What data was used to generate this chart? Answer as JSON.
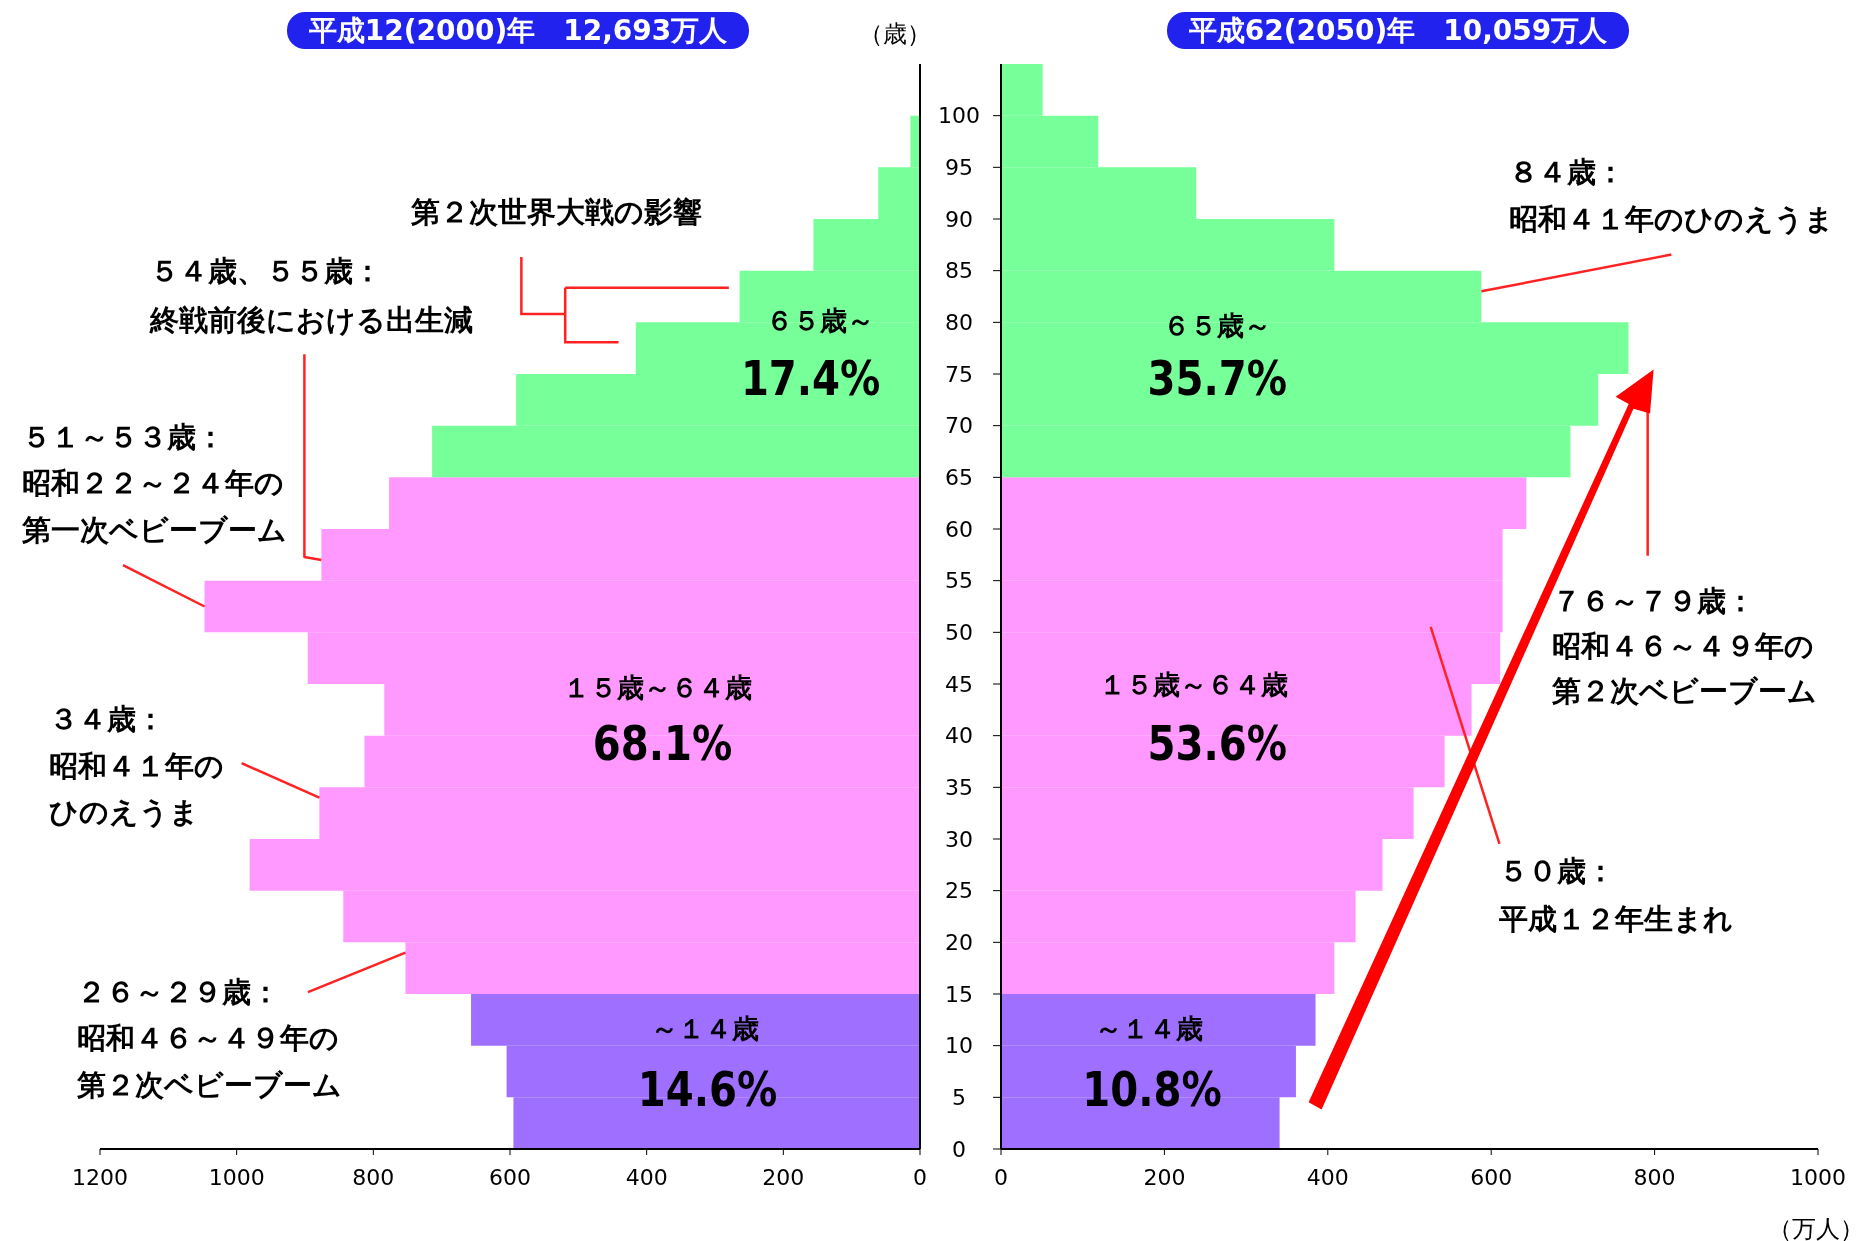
{
  "chart_data": [
    {
      "type": "histogram",
      "orientation": "horizontal",
      "title": "平成12(2000)年　12,693万人",
      "bins": [
        0,
        5,
        10,
        15,
        20,
        25,
        30,
        35,
        40,
        45,
        50,
        55,
        60,
        65,
        70,
        75,
        80,
        85,
        90,
        95,
        100
      ],
      "values": [
        595,
        605,
        657,
        753,
        844,
        981,
        879,
        813,
        784,
        896,
        1047,
        876,
        777,
        714,
        591,
        416,
        264,
        156,
        61,
        14
      ],
      "colors": [
        "#9f6fff",
        "#9f6fff",
        "#9f6fff",
        "#ff99ff",
        "#ff99ff",
        "#ff99ff",
        "#ff99ff",
        "#ff99ff",
        "#ff99ff",
        "#ff99ff",
        "#ff99ff",
        "#ff99ff",
        "#ff99ff",
        "#77ff99",
        "#77ff99",
        "#77ff99",
        "#77ff99",
        "#77ff99",
        "#77ff99",
        "#77ff99"
      ],
      "xlim": [
        1200,
        0
      ],
      "xticks": [
        1200,
        1000,
        800,
        600,
        400,
        200,
        0
      ],
      "ylim": [
        0,
        105
      ],
      "yticks": [
        0,
        5,
        10,
        15,
        20,
        25,
        30,
        35,
        40,
        45,
        50,
        55,
        60,
        65,
        70,
        75,
        80,
        85,
        90,
        95,
        100
      ],
      "tick_labels": "x",
      "annotations": [
        "第２次世界大戦の影響",
        {
          "text": "５４歳、５５歳：終戦前後における出生減",
          "x": 876,
          "y": 57
        },
        {
          "text": "５１～５３歳：昭和２２～２４年の第一次ベビーブーム",
          "x": 1047,
          "y": 52.5
        },
        {
          "text": "３４歳：昭和４１年のひのえうま",
          "x": 879,
          "y": 34
        },
        {
          "text": "２６～２９歳：昭和４６～４９年の第２次ベビーブーム",
          "x": 753,
          "y": 19
        },
        "６５歳～",
        "17.4%",
        "１５歳～６４歳",
        "68.1%",
        "～１４歳",
        "14.6%"
      ]
    },
    {
      "type": "histogram",
      "orientation": "horizontal",
      "title": "平成62(2050)年　10,059万人",
      "ylabel": "（歳）",
      "xlabel": "（万人）",
      "bins": [
        0,
        5,
        10,
        15,
        20,
        25,
        30,
        35,
        40,
        45,
        50,
        55,
        60,
        65,
        70,
        75,
        80,
        85,
        90,
        95,
        100,
        105
      ],
      "values": [
        341,
        361,
        385,
        408,
        434,
        467,
        505,
        543,
        576,
        611,
        614,
        614,
        643,
        697,
        731,
        768,
        588,
        408,
        239,
        119,
        51
      ],
      "colors": [
        "#9f6fff",
        "#9f6fff",
        "#9f6fff",
        "#ff99ff",
        "#ff99ff",
        "#ff99ff",
        "#ff99ff",
        "#ff99ff",
        "#ff99ff",
        "#ff99ff",
        "#ff99ff",
        "#ff99ff",
        "#ff99ff",
        "#77ff99",
        "#77ff99",
        "#77ff99",
        "#77ff99",
        "#77ff99",
        "#77ff99",
        "#77ff99",
        "#77ff99"
      ],
      "xlim": [
        0,
        1000
      ],
      "xticks": [
        0,
        200,
        400,
        600,
        800,
        1000
      ],
      "ylim": [
        0,
        105
      ],
      "yticks": [
        0,
        5,
        10,
        15,
        20,
        25,
        30,
        35,
        40,
        45,
        50,
        55,
        60,
        65,
        70,
        75,
        80,
        85,
        90,
        95,
        100
      ],
      "annotations": [
        {
          "text": "８４歳：昭和４１年のひのえうま",
          "x": 588,
          "y": 83
        },
        "７６～７９歳：昭和４６～４９年の第２次ベビーブーム",
        "５０歳：平成１２年生まれ",
        "６５歳～",
        "35.7%",
        "１５歳～６４歳",
        "53.6%",
        "～１４歳",
        "10.8%"
      ]
    }
  ]
}
